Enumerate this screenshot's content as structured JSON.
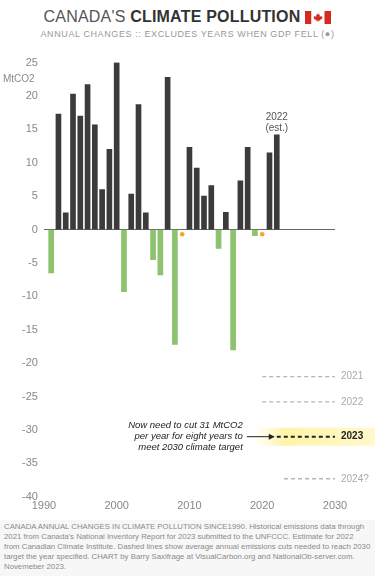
{
  "chart_data": {
    "type": "bar",
    "title": "CANADA'S CLIMATE POLLUTION",
    "subtitle": "ANNUAL CHANGES :: EXCLUDES YEARS WHEN GDP FELL (●)",
    "y_label": "MtCO2",
    "xlim": [
      1990,
      2030
    ],
    "xticks": [
      1990,
      2000,
      2010,
      2020,
      2030
    ],
    "ylim": [
      -40,
      25
    ],
    "yticks": [
      -40,
      -35,
      -30,
      -25,
      -20,
      -15,
      -10,
      -5,
      0,
      5,
      10,
      15,
      20,
      25
    ],
    "grid": false,
    "series": [
      {
        "type": "bar",
        "x": [
          1991,
          1992,
          1993,
          1994,
          1995,
          1996,
          1997,
          1998,
          1999,
          2000,
          2001,
          2002,
          2003,
          2004,
          2005,
          2006,
          2007,
          2008,
          2010,
          2011,
          2012,
          2013,
          2014,
          2015,
          2016,
          2017,
          2018,
          2019,
          2021,
          2022
        ],
        "values": [
          -6.5,
          17.3,
          2.5,
          20.3,
          17.0,
          21.7,
          15.7,
          6.0,
          12.0,
          25.0,
          -9.3,
          5.3,
          18.7,
          2.5,
          -4.5,
          -6.8,
          22.8,
          -17.2,
          12.3,
          9.2,
          5.0,
          6.6,
          -2.8,
          2.6,
          -18.0,
          7.3,
          12.3,
          -0.9,
          11.5,
          14.2
        ],
        "colors": [
          "#8dc26f",
          "#3b3b3b",
          "#3b3b3b",
          "#3b3b3b",
          "#3b3b3b",
          "#3b3b3b",
          "#3b3b3b",
          "#3b3b3b",
          "#3b3b3b",
          "#3b3b3b",
          "#8dc26f",
          "#3b3b3b",
          "#3b3b3b",
          "#3b3b3b",
          "#8dc26f",
          "#8dc26f",
          "#3b3b3b",
          "#8dc26f",
          "#3b3b3b",
          "#3b3b3b",
          "#3b3b3b",
          "#3b3b3b",
          "#8dc26f",
          "#3b3b3b",
          "#8dc26f",
          "#3b3b3b",
          "#3b3b3b",
          "#8dc26f",
          "#3b3b3b",
          "#3b3b3b"
        ]
      },
      {
        "type": "scatter",
        "x": [
          2009,
          2020
        ],
        "values": [
          -0.7,
          -0.7
        ],
        "color": "#f5a623",
        "marker": "circle"
      }
    ],
    "bar_note": [
      "2022",
      "(est.)"
    ],
    "targets": [
      {
        "label": "2021",
        "x": [
          2020,
          2030
        ],
        "values": [
          -22,
          -22
        ],
        "color": "#b5b5b5",
        "line_style": "dashed"
      },
      {
        "label": "2022",
        "x": [
          2020,
          2030
        ],
        "values": [
          -25.8,
          -25.8
        ],
        "color": "#b5b5b5",
        "line_style": "dashed"
      },
      {
        "label": "2023",
        "x": [
          2022,
          2030
        ],
        "values": [
          -31,
          -31
        ],
        "color": "#222222",
        "line_style": "dashed"
      },
      {
        "label": "2024?",
        "x": [
          2023,
          2030
        ],
        "values": [
          -37.3,
          -37.3
        ],
        "color": "#b5b5b5",
        "line_style": "dashed"
      }
    ],
    "annotation": {
      "text": [
        "Now need to cut 31 MtCO2",
        "per year for eight years to",
        "meet 2030 climate target"
      ],
      "points_to": "2023"
    },
    "footer": "CANADA ANNUAL CHANGES IN CLIMATE POLLUTION SINCE1990. Historical emissions data through 2021 from Canada's National Inventory Report for 2023 submitted to the UNFCCC. Estimate for 2022 from Canadian Climate Institute. Dashed lines show average annual emissions cuts needed to reach 2030 target the year specified. CHART by Barry Saxifrage at VisualCarbon.org and NationalOb-server.com. Novemeber 2023."
  }
}
